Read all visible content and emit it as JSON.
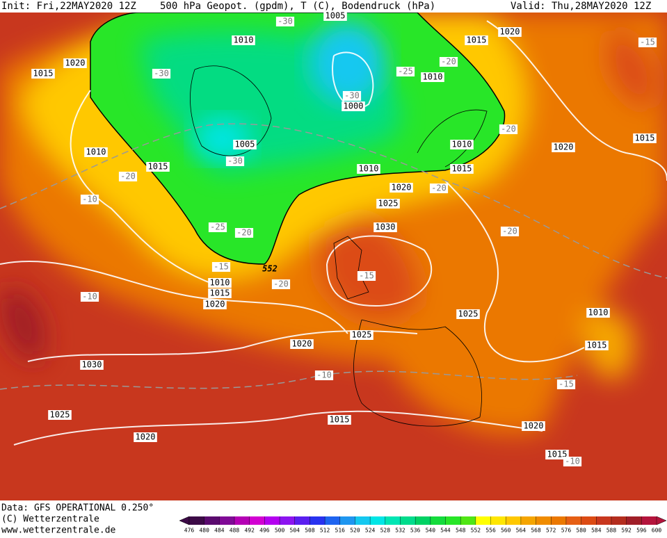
{
  "header": {
    "init": "Init: Fri,22MAY2020 12Z",
    "title": "500 hPa Geopot. (gpdm), T (C), Bodendruck (hPa)",
    "valid": "Valid: Thu,28MAY2020 12Z"
  },
  "footer": {
    "data": "Data: GFS OPERATIONAL 0.250°",
    "copyright": "(C) Wetterzentrale",
    "url": "www.wetterzentrale.de"
  },
  "isobar_labels": [
    "1005",
    "1010",
    "1020",
    "1015",
    "1010",
    "1015",
    "1020",
    "1000",
    "1005",
    "1010",
    "1010",
    "1015",
    "1015",
    "1010",
    "1020",
    "1015",
    "1020",
    "1025",
    "1030",
    "1010",
    "1015",
    "1020",
    "1025",
    "1025",
    "1020",
    "1010",
    "1015",
    "1030",
    "1025",
    "1015",
    "1020",
    "1020",
    "1015"
  ],
  "temperature_labels": [
    "-30",
    "-30",
    "-25",
    "-20",
    "-30",
    "-30",
    "-20",
    "-20",
    "-10",
    "-25",
    "-20",
    "-20",
    "-20",
    "-15",
    "-20",
    "-10",
    "-15",
    "-10",
    "-15",
    "-10",
    "-15"
  ],
  "contour_label": "552",
  "colorbar": {
    "labels": [
      476,
      480,
      484,
      488,
      492,
      496,
      500,
      504,
      508,
      512,
      516,
      520,
      524,
      528,
      532,
      536,
      540,
      544,
      548,
      552,
      556,
      560,
      564,
      568,
      572,
      576,
      580,
      584,
      588,
      592,
      596,
      600
    ],
    "colors": [
      "#3c0a46",
      "#5a0a6e",
      "#800a96",
      "#b400b4",
      "#d200d2",
      "#b400f0",
      "#8c14f0",
      "#5a1ef0",
      "#2832f0",
      "#1e64f0",
      "#1e96f0",
      "#14c8f0",
      "#00e6e6",
      "#00e6b4",
      "#00dc8c",
      "#00d264",
      "#14dc3c",
      "#28e628",
      "#50e614",
      "#ffff00",
      "#ffe600",
      "#ffc800",
      "#f5a500",
      "#f08c00",
      "#eb7800",
      "#e65f14",
      "#dc4b14",
      "#c8371e",
      "#b42d1e",
      "#a01e28",
      "#b4143c"
    ]
  }
}
